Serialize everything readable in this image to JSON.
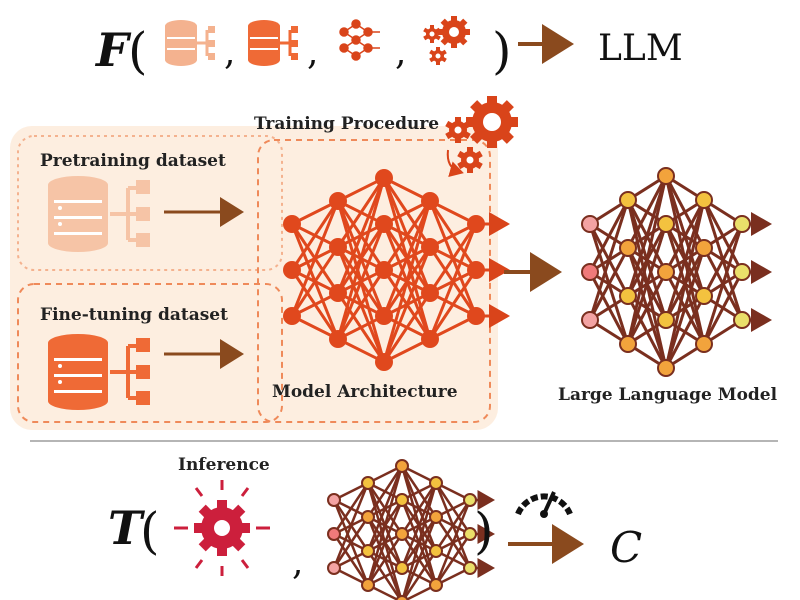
{
  "formula_top": {
    "symbol": "F",
    "open_paren": "(",
    "close_paren": ")",
    "comma": ",",
    "result": "LLM",
    "items": [
      "pretraining-dataset-icon",
      "finetuning-dataset-icon",
      "model-architecture-icon",
      "training-procedure-icon"
    ]
  },
  "diagram": {
    "training_label": "Training Procedure",
    "pretrain_label": "Pretraining dataset",
    "finetune_label": "Fine-tuning dataset",
    "arch_label": "Model Architecture",
    "llm_label": "Large Language Model"
  },
  "formula_bottom": {
    "symbol": "T",
    "open_paren": "(",
    "close_paren": ")",
    "comma": ",",
    "inference_label": "Inference",
    "result": "C"
  },
  "colors": {
    "pale_orange": "#f4b28f",
    "orange": "#ef6a36",
    "red_orange": "#d9441a",
    "brown": "#7a2f1f",
    "crimson": "#cc1f3c",
    "arrow": "#8a4a1e",
    "panel": "#fdeee0"
  }
}
